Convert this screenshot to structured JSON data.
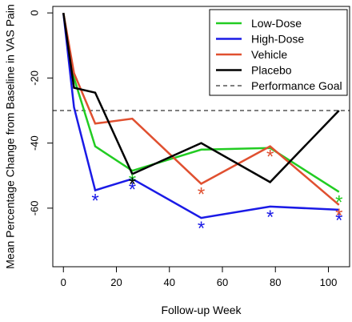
{
  "chart_data": {
    "type": "line",
    "title": "",
    "xlabel": "Follow-up Week",
    "ylabel": "Mean Percentage Change from Baseline in VAS Pain",
    "xlim": [
      -4,
      108
    ],
    "ylim": [
      -78,
      2
    ],
    "xticks": [
      0,
      20,
      40,
      60,
      80,
      100
    ],
    "yticks": [
      0,
      -20,
      -40,
      -60
    ],
    "xtick_labels": [
      "0",
      "20",
      "40",
      "60",
      "80",
      "100"
    ],
    "ytick_labels": [
      "0",
      "-20",
      "-40",
      "-60"
    ],
    "grid": false,
    "legend_position": "top-right",
    "series": [
      {
        "name": "Low-Dose",
        "color": "#22cc22",
        "x": [
          0,
          4,
          12,
          26,
          52,
          78,
          104
        ],
        "values": [
          0,
          -20,
          -41,
          -48.5,
          -42,
          -41.5,
          -55
        ],
        "significant_at": [
          26,
          104
        ]
      },
      {
        "name": "High-Dose",
        "color": "#1a1ae6",
        "x": [
          0,
          4,
          12,
          26,
          52,
          78,
          104
        ],
        "values": [
          0,
          -29,
          -54.5,
          -51,
          -63,
          -59.5,
          -60.5
        ],
        "significant_at": [
          12,
          26,
          52,
          78,
          104
        ]
      },
      {
        "name": "Vehicle",
        "color": "#e05030",
        "x": [
          0,
          4,
          12,
          26,
          52,
          78,
          104
        ],
        "values": [
          0,
          -18.5,
          -34,
          -32.5,
          -52.5,
          -41,
          -59
        ],
        "significant_at": [
          52,
          78,
          104
        ]
      },
      {
        "name": "Placebo",
        "color": "#000000",
        "x": [
          0,
          4,
          12,
          26,
          52,
          78,
          104
        ],
        "values": [
          0,
          -23,
          -24.5,
          -49.5,
          -40,
          -52,
          -30
        ],
        "significant_at": [
          26
        ]
      }
    ],
    "reference_lines": [
      {
        "name": "Performance Goal",
        "y": -30,
        "style": "dashed",
        "color": "#000000"
      }
    ]
  }
}
